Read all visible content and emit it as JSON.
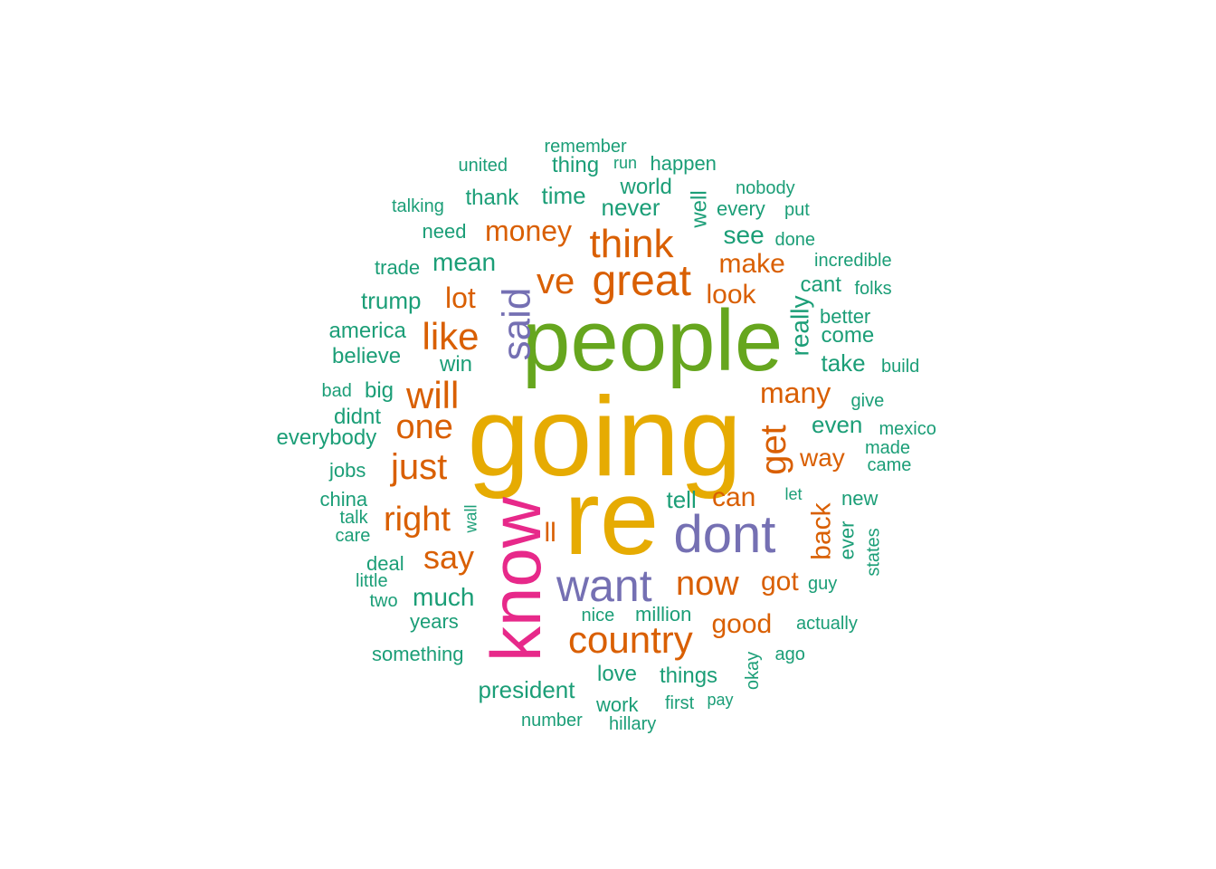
{
  "colors": {
    "teal": "#1b9e77",
    "orange": "#d95f02",
    "purple": "#7570b3",
    "magenta": "#e7298a",
    "green": "#66a61e",
    "gold": "#e6ab02"
  },
  "words": [
    {
      "text": "going",
      "color": "gold"
    },
    {
      "text": "re",
      "color": "gold"
    },
    {
      "text": "people",
      "color": "green"
    },
    {
      "text": "know",
      "color": "magenta"
    },
    {
      "text": "dont",
      "color": "purple"
    },
    {
      "text": "want",
      "color": "purple"
    },
    {
      "text": "said",
      "color": "purple"
    },
    {
      "text": "great",
      "color": "orange"
    },
    {
      "text": "think",
      "color": "orange"
    },
    {
      "text": "ve",
      "color": "orange"
    },
    {
      "text": "get",
      "color": "orange"
    },
    {
      "text": "country",
      "color": "orange"
    },
    {
      "text": "like",
      "color": "orange"
    },
    {
      "text": "will",
      "color": "orange"
    },
    {
      "text": "one",
      "color": "orange"
    },
    {
      "text": "just",
      "color": "orange"
    },
    {
      "text": "right",
      "color": "orange"
    },
    {
      "text": "now",
      "color": "orange"
    },
    {
      "text": "say",
      "color": "orange"
    },
    {
      "text": "many",
      "color": "orange"
    },
    {
      "text": "money",
      "color": "orange"
    },
    {
      "text": "make",
      "color": "orange"
    },
    {
      "text": "good",
      "color": "orange"
    },
    {
      "text": "can",
      "color": "orange"
    },
    {
      "text": "back",
      "color": "orange"
    },
    {
      "text": "got",
      "color": "orange"
    },
    {
      "text": "lot",
      "color": "orange"
    },
    {
      "text": "way",
      "color": "orange"
    },
    {
      "text": "look",
      "color": "orange"
    },
    {
      "text": "ll",
      "color": "orange"
    },
    {
      "text": "really",
      "color": "teal"
    },
    {
      "text": "much",
      "color": "teal"
    },
    {
      "text": "president",
      "color": "teal"
    },
    {
      "text": "mean",
      "color": "teal"
    },
    {
      "text": "see",
      "color": "teal"
    },
    {
      "text": "never",
      "color": "teal"
    },
    {
      "text": "time",
      "color": "teal"
    },
    {
      "text": "world",
      "color": "teal"
    },
    {
      "text": "thank",
      "color": "teal"
    },
    {
      "text": "thing",
      "color": "teal"
    },
    {
      "text": "remember",
      "color": "teal"
    },
    {
      "text": "united",
      "color": "teal"
    },
    {
      "text": "run",
      "color": "teal"
    },
    {
      "text": "happen",
      "color": "teal"
    },
    {
      "text": "nobody",
      "color": "teal"
    },
    {
      "text": "talking",
      "color": "teal"
    },
    {
      "text": "well",
      "color": "teal"
    },
    {
      "text": "every",
      "color": "teal"
    },
    {
      "text": "put",
      "color": "teal"
    },
    {
      "text": "need",
      "color": "teal"
    },
    {
      "text": "done",
      "color": "teal"
    },
    {
      "text": "trade",
      "color": "teal"
    },
    {
      "text": "incredible",
      "color": "teal"
    },
    {
      "text": "cant",
      "color": "teal"
    },
    {
      "text": "folks",
      "color": "teal"
    },
    {
      "text": "trump",
      "color": "teal"
    },
    {
      "text": "better",
      "color": "teal"
    },
    {
      "text": "america",
      "color": "teal"
    },
    {
      "text": "come",
      "color": "teal"
    },
    {
      "text": "believe",
      "color": "teal"
    },
    {
      "text": "take",
      "color": "teal"
    },
    {
      "text": "build",
      "color": "teal"
    },
    {
      "text": "win",
      "color": "teal"
    },
    {
      "text": "bad",
      "color": "teal"
    },
    {
      "text": "big",
      "color": "teal"
    },
    {
      "text": "give",
      "color": "teal"
    },
    {
      "text": "didnt",
      "color": "teal"
    },
    {
      "text": "even",
      "color": "teal"
    },
    {
      "text": "mexico",
      "color": "teal"
    },
    {
      "text": "everybody",
      "color": "teal"
    },
    {
      "text": "made",
      "color": "teal"
    },
    {
      "text": "came",
      "color": "teal"
    },
    {
      "text": "jobs",
      "color": "teal"
    },
    {
      "text": "let",
      "color": "teal"
    },
    {
      "text": "china",
      "color": "teal"
    },
    {
      "text": "tell",
      "color": "teal"
    },
    {
      "text": "new",
      "color": "teal"
    },
    {
      "text": "talk",
      "color": "teal"
    },
    {
      "text": "wall",
      "color": "teal"
    },
    {
      "text": "care",
      "color": "teal"
    },
    {
      "text": "ever",
      "color": "teal"
    },
    {
      "text": "states",
      "color": "teal"
    },
    {
      "text": "deal",
      "color": "teal"
    },
    {
      "text": "little",
      "color": "teal"
    },
    {
      "text": "guy",
      "color": "teal"
    },
    {
      "text": "two",
      "color": "teal"
    },
    {
      "text": "nice",
      "color": "teal"
    },
    {
      "text": "million",
      "color": "teal"
    },
    {
      "text": "years",
      "color": "teal"
    },
    {
      "text": "actually",
      "color": "teal"
    },
    {
      "text": "something",
      "color": "teal"
    },
    {
      "text": "ago",
      "color": "teal"
    },
    {
      "text": "love",
      "color": "teal"
    },
    {
      "text": "things",
      "color": "teal"
    },
    {
      "text": "okay",
      "color": "teal"
    },
    {
      "text": "work",
      "color": "teal"
    },
    {
      "text": "first",
      "color": "teal"
    },
    {
      "text": "pay",
      "color": "teal"
    },
    {
      "text": "number",
      "color": "teal"
    },
    {
      "text": "hillary",
      "color": "teal"
    }
  ]
}
